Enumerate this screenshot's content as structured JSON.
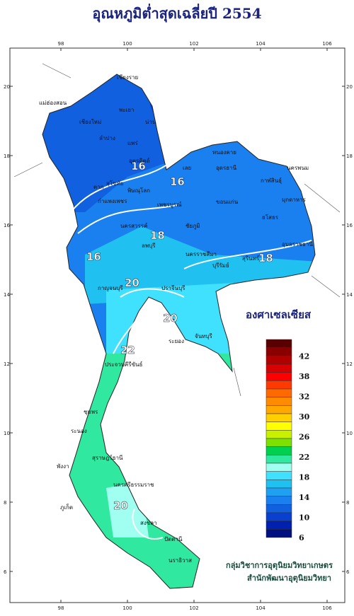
{
  "title": "อุณหภูมิต่ำสุดเฉลี่ยปี 2554",
  "lon_ticks": [
    98,
    100,
    102,
    104,
    106
  ],
  "lat_ticks": [
    20,
    18,
    16,
    14,
    12,
    10,
    8,
    6
  ],
  "legend": {
    "title": "องศาเซลเซียส",
    "colors": [
      "#5a0000",
      "#8a0000",
      "#b00000",
      "#d80000",
      "#ff0000",
      "#ff3a00",
      "#ff6a00",
      "#ff8c00",
      "#ffa800",
      "#ffd000",
      "#ffff00",
      "#c8f000",
      "#7ce000",
      "#00d050",
      "#30e8a0",
      "#a0fff0",
      "#40e0ff",
      "#20c0f0",
      "#20a0f0",
      "#1a80f0",
      "#1060e0",
      "#0a40d0",
      "#0020b0",
      "#001080"
    ],
    "labels": [
      "42",
      "38",
      "32",
      "30",
      "26",
      "22",
      "18",
      "14",
      "10",
      "6"
    ]
  },
  "contour_labels": [
    "16",
    "16",
    "18",
    "16",
    "18",
    "20",
    "20",
    "22",
    "20"
  ],
  "provinces": [
    "เชียงราย",
    "แม่ฮ่องสอน",
    "เชียงใหม่",
    "พะเยา",
    "ลำปาง",
    "น่าน",
    "แพร่",
    "อุตรดิตถ์",
    "ตาก",
    "สุโขทัย",
    "พิษณุโลก",
    "กำแพงเพชร",
    "เพชรบูรณ์",
    "หนองคาย",
    "นครพนม",
    "อุดรธานี",
    "เลย",
    "กาฬสินธุ์",
    "มุกดาหาร",
    "ขอนแก่น",
    "ชัยภูมิ",
    "นครสวรรค์",
    "ลพบุรี",
    "นครราชสีมา",
    "อุบลราชธานี",
    "ยโสธร",
    "สุรินทร์",
    "บุรีรัมย์",
    "กาญจนบุรี",
    "ปราจีนบุรี",
    "ระยอง",
    "จันทบุรี",
    "ประจวบคีรีขันธ์",
    "ชุมพร",
    "ระนอง",
    "สุราษฎร์ธานี",
    "ภูเก็ต",
    "นครศรีธรรมราช",
    "พังงา",
    "สงขลา",
    "ปัตตานี",
    "นราธิวาส"
  ],
  "credit": [
    "กลุ่มวิชาการอุตุนิยมวิทยาเกษตร",
    "สำนักพัฒนาอุตุนิยมวิทยา"
  ]
}
